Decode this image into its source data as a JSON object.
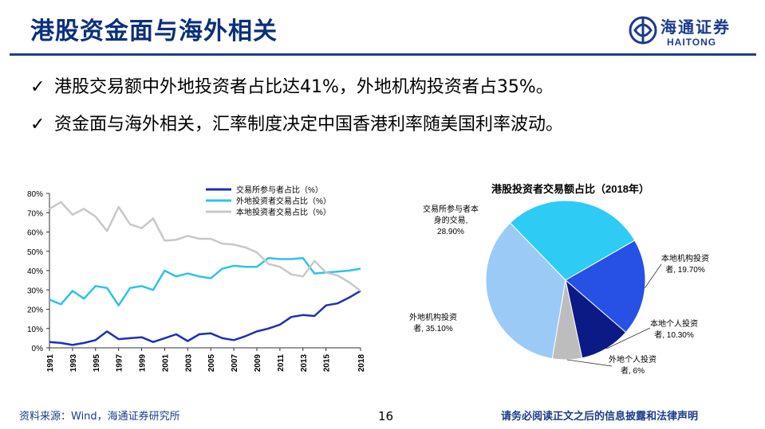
{
  "slide": {
    "title": "港股资金面与海外相关",
    "page_number": "16",
    "source": "资料来源：Wind，海通证券研究所",
    "disclaimer": "请务必阅读正文之后的信息披露和法律声明"
  },
  "logo": {
    "cn": "海通证券",
    "en": "HAITONG"
  },
  "bullets": [
    {
      "check": "✓",
      "text": "港股交易额中外地投资者占比达41%，外地机构投资者占35%。"
    },
    {
      "check": "✓",
      "text": "资金面与海外相关，汇率制度决定中国香港利率随美国利率波动。"
    }
  ],
  "colors": {
    "title": "#0b2f7c",
    "series_exchange": "#1d2fb8",
    "series_foreign": "#2bc3ea",
    "series_local": "#c8c8c8",
    "pie_exchange": "#2ecbf4",
    "pie_local_inst": "#2651e4",
    "pie_local_retail": "#0c1a86",
    "pie_foreign_retail": "#bdbdbd",
    "pie_foreign_inst": "#9ccaf7"
  },
  "chart_data": [
    {
      "type": "line",
      "title": "",
      "xlabel": "",
      "ylabel": "",
      "x": [
        "1991",
        "1992",
        "1993",
        "1994",
        "1995",
        "1996",
        "1997",
        "1998",
        "1999",
        "2000",
        "2001",
        "2002",
        "2003",
        "2004",
        "2005",
        "2006",
        "2007",
        "2008",
        "2009",
        "2010",
        "2011",
        "2012",
        "2013",
        "2014",
        "2015",
        "2016",
        "2017",
        "2018"
      ],
      "x_tick_labels": [
        "1991",
        "1993",
        "1995",
        "1997",
        "1999",
        "2001",
        "2003",
        "2005",
        "2007",
        "2009",
        "2011",
        "2013",
        "2015",
        "2018"
      ],
      "y_tick_labels": [
        "0%",
        "10%",
        "20%",
        "30%",
        "40%",
        "50%",
        "60%",
        "70%",
        "80%"
      ],
      "ylim": [
        0,
        80
      ],
      "legend_position": "top-right",
      "series": [
        {
          "name": "交易所参与者占比（%）",
          "values": [
            3,
            2.5,
            1.5,
            2.5,
            4,
            8.5,
            4.5,
            5,
            5.5,
            3,
            5,
            7,
            3.5,
            7,
            7.5,
            5,
            4,
            6,
            8.5,
            10,
            12,
            16,
            17,
            16.5,
            22,
            23,
            26,
            29.5
          ]
        },
        {
          "name": "外地投资者交易占比（%）",
          "values": [
            25,
            22.5,
            29.5,
            25.5,
            32,
            31,
            22,
            31,
            32,
            30,
            40,
            37,
            38.5,
            37,
            36,
            41,
            42.5,
            42,
            42,
            46.5,
            46,
            46,
            46.5,
            38.5,
            39,
            39.5,
            40,
            41
          ]
        },
        {
          "name": "本地投资者交易占比（%）",
          "values": [
            72,
            75.5,
            69,
            72,
            68,
            60.5,
            73,
            64,
            62,
            67,
            55.5,
            56,
            58,
            56.5,
            56.5,
            54,
            53.5,
            52,
            49.5,
            43.5,
            42,
            38,
            37,
            45,
            39,
            37.5,
            34,
            29.5
          ]
        }
      ]
    },
    {
      "type": "pie",
      "title": "港股投资者交易额占比（2018年）",
      "slices": [
        {
          "label": "交易所参与者本身的交易，28.90%",
          "lines": [
            "交易所参与者本",
            "身的交易,",
            "28.90%"
          ],
          "value": 28.9
        },
        {
          "label": "本地机构投资者，19.70%",
          "lines": [
            "本地机构投资",
            "者, 19.70%"
          ],
          "value": 19.7
        },
        {
          "label": "本地个人投资者，10.30%",
          "lines": [
            "本地个人投资",
            "者, 10.30%"
          ],
          "value": 10.3
        },
        {
          "label": "外地个人投资者，6%",
          "lines": [
            "外地个人投资",
            "者, 6%"
          ],
          "value": 6.0
        },
        {
          "label": "外地机构投资者，35.10%",
          "lines": [
            "外地机构投资",
            "者, 35.10%"
          ],
          "value": 35.1
        }
      ]
    }
  ]
}
